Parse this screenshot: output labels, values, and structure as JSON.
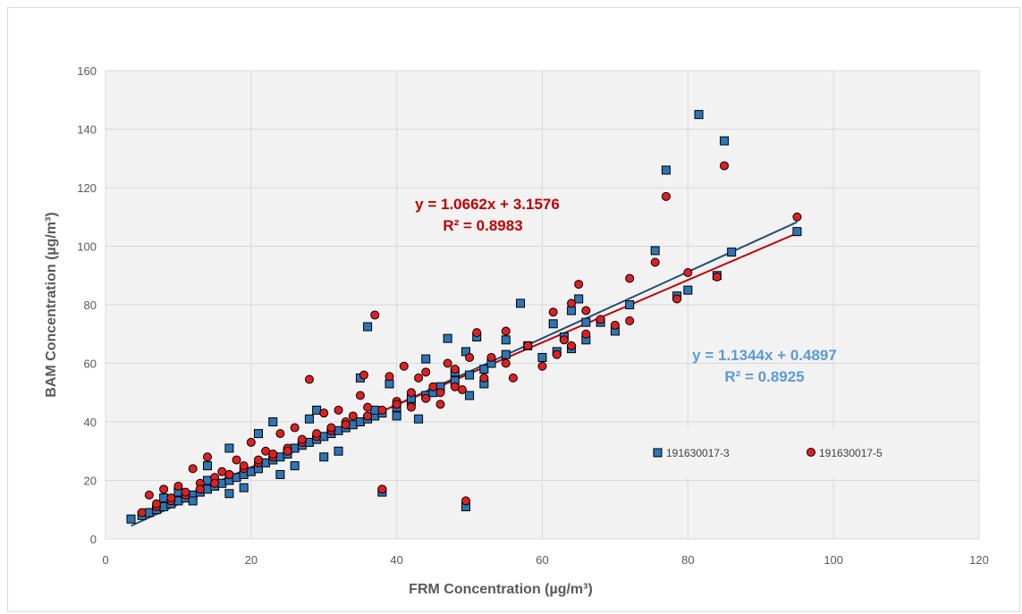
{
  "chart_data": {
    "type": "scatter",
    "title": "",
    "xlabel": "FRM Concentration (µg/m³)",
    "ylabel": "BAM Concentration (µg/m³)",
    "xlim": [
      0,
      120
    ],
    "ylim": [
      0,
      160
    ],
    "xticks": [
      0,
      20,
      40,
      60,
      80,
      100,
      120
    ],
    "yticks": [
      0,
      20,
      40,
      60,
      80,
      100,
      120,
      140,
      160
    ],
    "grid": true,
    "legend_position": "bottom-right",
    "series": [
      {
        "name": "191630017-3",
        "marker": "square",
        "color": "#2e75b6",
        "trendline": {
          "slope": 1.1344,
          "intercept": 0.4897,
          "color": "#1f4e79"
        },
        "equation": "y = 1.1344x + 0.4897",
        "r2": "R² = 0.8925",
        "label_color": "#5b9bd5",
        "points": [
          [
            3.5,
            6.8
          ],
          [
            5,
            8
          ],
          [
            6,
            9
          ],
          [
            7,
            10
          ],
          [
            8,
            11
          ],
          [
            9,
            12
          ],
          [
            10,
            13
          ],
          [
            11,
            14
          ],
          [
            12,
            15
          ],
          [
            13,
            16
          ],
          [
            14,
            17
          ],
          [
            15,
            18
          ],
          [
            16,
            19
          ],
          [
            17,
            20
          ],
          [
            18,
            21
          ],
          [
            19,
            22
          ],
          [
            20,
            23
          ],
          [
            21,
            24
          ],
          [
            22,
            26
          ],
          [
            23,
            27
          ],
          [
            24,
            28
          ],
          [
            25,
            29
          ],
          [
            26,
            31
          ],
          [
            27,
            32
          ],
          [
            28,
            33
          ],
          [
            29,
            34
          ],
          [
            30,
            35
          ],
          [
            31,
            36
          ],
          [
            32,
            37
          ],
          [
            33,
            38
          ],
          [
            34,
            39
          ],
          [
            35,
            40
          ],
          [
            36,
            41
          ],
          [
            37,
            42
          ],
          [
            38,
            43
          ],
          [
            40,
            45
          ],
          [
            42,
            47
          ],
          [
            44,
            49
          ],
          [
            46,
            52
          ],
          [
            48,
            54
          ],
          [
            50,
            56
          ],
          [
            52,
            58
          ],
          [
            8,
            14
          ],
          [
            10,
            16
          ],
          [
            12,
            13
          ],
          [
            14,
            20
          ],
          [
            14,
            25
          ],
          [
            17,
            15.5
          ],
          [
            17,
            31
          ],
          [
            19,
            17.5
          ],
          [
            21,
            36
          ],
          [
            23,
            40
          ],
          [
            24,
            22
          ],
          [
            26,
            25
          ],
          [
            28,
            41
          ],
          [
            29,
            44
          ],
          [
            30,
            28
          ],
          [
            32,
            30
          ],
          [
            35,
            55
          ],
          [
            36,
            72.5
          ],
          [
            37,
            44
          ],
          [
            38,
            16
          ],
          [
            39,
            53
          ],
          [
            40,
            42
          ],
          [
            42,
            48
          ],
          [
            43,
            41
          ],
          [
            44,
            61.5
          ],
          [
            45,
            50
          ],
          [
            47,
            68.5
          ],
          [
            48,
            57
          ],
          [
            49.5,
            11
          ],
          [
            49.5,
            64
          ],
          [
            50,
            49
          ],
          [
            51,
            69
          ],
          [
            52,
            53
          ],
          [
            53,
            60
          ],
          [
            55,
            68
          ],
          [
            55,
            63
          ],
          [
            57,
            80.5
          ],
          [
            58,
            66
          ],
          [
            60,
            62
          ],
          [
            61.5,
            73.5
          ],
          [
            62,
            64
          ],
          [
            63,
            69
          ],
          [
            64,
            78
          ],
          [
            64,
            65
          ],
          [
            65,
            82
          ],
          [
            66,
            68
          ],
          [
            66,
            74
          ],
          [
            68,
            74
          ],
          [
            70,
            71
          ],
          [
            72,
            80
          ],
          [
            75.5,
            98.5
          ],
          [
            77,
            126
          ],
          [
            78.5,
            83
          ],
          [
            80,
            85
          ],
          [
            81.5,
            145
          ],
          [
            84,
            90
          ],
          [
            85,
            136
          ],
          [
            86,
            98
          ],
          [
            95,
            105
          ]
        ]
      },
      {
        "name": "191630017-5",
        "marker": "circle",
        "color": "#e02020",
        "trendline": {
          "slope": 1.0662,
          "intercept": 3.1576,
          "color": "#c00000"
        },
        "equation": "y = 1.0662x + 3.1576",
        "r2": "R² = 0.8983",
        "label_color": "#c00000",
        "points": [
          [
            5,
            9
          ],
          [
            6,
            15
          ],
          [
            7,
            11
          ],
          [
            8,
            17
          ],
          [
            9,
            13
          ],
          [
            10,
            18
          ],
          [
            11,
            15
          ],
          [
            12,
            24
          ],
          [
            13,
            19
          ],
          [
            14,
            28
          ],
          [
            15,
            21
          ],
          [
            16,
            23
          ],
          [
            17,
            22
          ],
          [
            18,
            27
          ],
          [
            19,
            24
          ],
          [
            20,
            33
          ],
          [
            21,
            26
          ],
          [
            22,
            30
          ],
          [
            23,
            28
          ],
          [
            24,
            36
          ],
          [
            25,
            31
          ],
          [
            26,
            38
          ],
          [
            27,
            33
          ],
          [
            28,
            54.5
          ],
          [
            29,
            35
          ],
          [
            30,
            43
          ],
          [
            31,
            37
          ],
          [
            32,
            44
          ],
          [
            33,
            40
          ],
          [
            34,
            42
          ],
          [
            35,
            49
          ],
          [
            35.5,
            56
          ],
          [
            36,
            45
          ],
          [
            37,
            76.5
          ],
          [
            38,
            17
          ],
          [
            39,
            55.5
          ],
          [
            40,
            47
          ],
          [
            41,
            59
          ],
          [
            42,
            50
          ],
          [
            43,
            55
          ],
          [
            44,
            57
          ],
          [
            45,
            52
          ],
          [
            46,
            46
          ],
          [
            47,
            60
          ],
          [
            48,
            58
          ],
          [
            49,
            51
          ],
          [
            49.5,
            13
          ],
          [
            50,
            62
          ],
          [
            51,
            70.5
          ],
          [
            52,
            55
          ],
          [
            53,
            62
          ],
          [
            55,
            71
          ],
          [
            55,
            60
          ],
          [
            56,
            55
          ],
          [
            58,
            66
          ],
          [
            60,
            59
          ],
          [
            61.5,
            77.5
          ],
          [
            62,
            63
          ],
          [
            63,
            68
          ],
          [
            64,
            80.5
          ],
          [
            64,
            66
          ],
          [
            65,
            87
          ],
          [
            66,
            78
          ],
          [
            66,
            70
          ],
          [
            68,
            75
          ],
          [
            70,
            73
          ],
          [
            72,
            74.5
          ],
          [
            72,
            89
          ],
          [
            75.5,
            94.5
          ],
          [
            77,
            117
          ],
          [
            78.5,
            82
          ],
          [
            80,
            91
          ],
          [
            84,
            89.5
          ],
          [
            85,
            127.5
          ],
          [
            95,
            110
          ],
          [
            7,
            12
          ],
          [
            9,
            14
          ],
          [
            11,
            16
          ],
          [
            13,
            17
          ],
          [
            15,
            19
          ],
          [
            17,
            22
          ],
          [
            19,
            25
          ],
          [
            21,
            27
          ],
          [
            23,
            29
          ],
          [
            25,
            30
          ],
          [
            27,
            34
          ],
          [
            29,
            36
          ],
          [
            31,
            38
          ],
          [
            33,
            39
          ],
          [
            36,
            42
          ],
          [
            38,
            44
          ],
          [
            40,
            46
          ],
          [
            42,
            45
          ],
          [
            44,
            48
          ],
          [
            46,
            50
          ],
          [
            48,
            52
          ]
        ]
      }
    ]
  }
}
